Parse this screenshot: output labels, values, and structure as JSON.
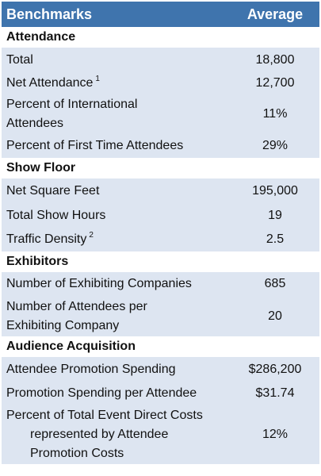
{
  "header": {
    "label": "Benchmarks",
    "value": "Average"
  },
  "sections": {
    "attendance": "Attendance",
    "show_floor": "Show Floor",
    "exhibitors": "Exhibitors",
    "audience": "Audience Acquisition"
  },
  "rows": {
    "total": {
      "label": "Total",
      "value": "18,800"
    },
    "net_attendance": {
      "label": "Net Attendance",
      "sup": "1",
      "value": "12,700"
    },
    "pct_international": {
      "label_line1": "Percent of  International",
      "label_line2": "Attendees",
      "value": "11%"
    },
    "pct_first_time": {
      "label": "Percent of First Time Attendees",
      "value": "29%"
    },
    "net_square_feet": {
      "label": "Net Square Feet",
      "value": "195,000"
    },
    "total_show_hours": {
      "label": "Total Show Hours",
      "value": "19"
    },
    "traffic_density": {
      "label": "Traffic Density",
      "sup": "2",
      "value": "2.5"
    },
    "num_exhibiting": {
      "label": "Number of Exhibiting Companies",
      "value": "685"
    },
    "attendees_per_exhibitor": {
      "label_line1": "Number of Attendees per",
      "label_line2": "Exhibiting Company",
      "value": "20"
    },
    "promo_spending": {
      "label": "Attendee Promotion Spending",
      "value": "$286,200"
    },
    "promo_per_attendee": {
      "label": "Promotion Spending per Attendee",
      "value": "$31.74"
    },
    "pct_direct_costs": {
      "label_line1": "Percent of Total Event Direct Costs",
      "label_line2": "represented by Attendee",
      "label_line3": "Promotion Costs",
      "value": "12%"
    }
  }
}
